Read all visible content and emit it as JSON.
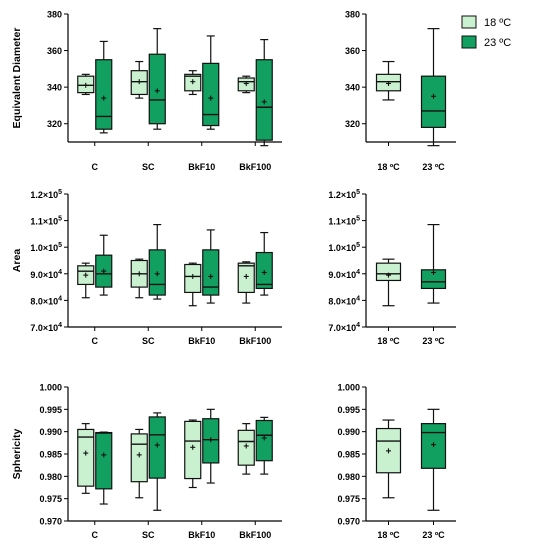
{
  "colors": {
    "light": "#c9f0cf",
    "dark": "#11a060",
    "stroke": "#111111"
  },
  "legend": {
    "entries": [
      {
        "label": "18 ºC",
        "color": "#c9f0cf"
      },
      {
        "label": "23 ºC",
        "color": "#11a060"
      }
    ]
  },
  "chart_data": [
    {
      "type": "box",
      "ylabel": "Equivalent Diameter",
      "ylim": [
        310,
        380
      ],
      "yticks": [
        320,
        340,
        360,
        380
      ],
      "ytick_labels": [
        "320",
        "340",
        "360",
        "380"
      ],
      "categories": [
        "C",
        "SC",
        "BkF10",
        "BkF100"
      ],
      "series": [
        {
          "name": "18 ºC",
          "boxes": [
            {
              "min": 336,
              "q1": 337,
              "median": 341,
              "q3": 346,
              "max": 347,
              "mean": 341
            },
            {
              "min": 334,
              "q1": 336,
              "median": 343,
              "q3": 349,
              "max": 354,
              "mean": 343
            },
            {
              "min": 336,
              "q1": 338,
              "median": 346,
              "q3": 347,
              "max": 349,
              "mean": 343
            },
            {
              "min": 337,
              "q1": 338,
              "median": 343,
              "q3": 345,
              "max": 346,
              "mean": 342
            }
          ]
        },
        {
          "name": "23 ºC",
          "boxes": [
            {
              "min": 315,
              "q1": 317,
              "median": 324,
              "q3": 355,
              "max": 365,
              "mean": 334
            },
            {
              "min": 317,
              "q1": 320,
              "median": 333,
              "q3": 358,
              "max": 372,
              "mean": 338
            },
            {
              "min": 317,
              "q1": 319,
              "median": 325,
              "q3": 353,
              "max": 368,
              "mean": 334
            },
            {
              "min": 308,
              "q1": 311,
              "median": 329,
              "q3": 355,
              "max": 366,
              "mean": 332
            }
          ]
        }
      ]
    },
    {
      "type": "box",
      "ylim": [
        310,
        380
      ],
      "yticks": [
        320,
        340,
        360,
        380
      ],
      "ytick_labels": [
        "320",
        "340",
        "360",
        "380"
      ],
      "categories": [
        "18 ºC",
        "23 ºC"
      ],
      "series": [
        {
          "name": "18 ºC",
          "boxes": [
            {
              "min": 333,
              "q1": 338,
              "median": 343,
              "q3": 347,
              "max": 354,
              "mean": 342
            }
          ]
        },
        {
          "name": "23 ºC",
          "boxes": [
            {
              "min": 308,
              "q1": 318,
              "median": 327,
              "q3": 346,
              "max": 372,
              "mean": 335
            }
          ]
        }
      ]
    },
    {
      "type": "box",
      "ylabel": "Area",
      "ylim": [
        70000,
        120000
      ],
      "yticks": [
        70000,
        80000,
        90000,
        100000,
        110000,
        120000
      ],
      "ytick_labels": [
        {
          "base": "7.0×10",
          "exp": "4"
        },
        {
          "base": "8.0×10",
          "exp": "4"
        },
        {
          "base": "9.0×10",
          "exp": "4"
        },
        {
          "base": "1.0×10",
          "exp": "5"
        },
        {
          "base": "1.1×10",
          "exp": "5"
        },
        {
          "base": "1.2×10",
          "exp": "5"
        }
      ],
      "categories": [
        "C",
        "SC",
        "BkF10",
        "BkF100"
      ],
      "series": [
        {
          "name": "18 ºC",
          "boxes": [
            {
              "min": 81000,
              "q1": 86000,
              "median": 91000,
              "q3": 93000,
              "max": 94000,
              "mean": 89500
            },
            {
              "min": 81000,
              "q1": 85000,
              "median": 90000,
              "q3": 95000,
              "max": 95500,
              "mean": 90000
            },
            {
              "min": 78000,
              "q1": 83000,
              "median": 89000,
              "q3": 93500,
              "max": 94000,
              "mean": 89000
            },
            {
              "min": 79000,
              "q1": 83000,
              "median": 93000,
              "q3": 94000,
              "max": 94500,
              "mean": 89000
            }
          ]
        },
        {
          "name": "23 ºC",
          "boxes": [
            {
              "min": 82000,
              "q1": 85000,
              "median": 90000,
              "q3": 97000,
              "max": 104500,
              "mean": 91000
            },
            {
              "min": 80500,
              "q1": 82000,
              "median": 86000,
              "q3": 99000,
              "max": 108500,
              "mean": 90000
            },
            {
              "min": 79000,
              "q1": 82000,
              "median": 85000,
              "q3": 99000,
              "max": 106500,
              "mean": 89000
            },
            {
              "min": 82000,
              "q1": 84500,
              "median": 86000,
              "q3": 98000,
              "max": 105500,
              "mean": 90500
            }
          ]
        }
      ]
    },
    {
      "type": "box",
      "ylim": [
        70000,
        120000
      ],
      "yticks": [
        70000,
        80000,
        90000,
        100000,
        110000,
        120000
      ],
      "ytick_labels": [
        {
          "base": "7.0×10",
          "exp": "4"
        },
        {
          "base": "8.0×10",
          "exp": "4"
        },
        {
          "base": "9.0×10",
          "exp": "4"
        },
        {
          "base": "1.0×10",
          "exp": "5"
        },
        {
          "base": "1.1×10",
          "exp": "5"
        },
        {
          "base": "1.2×10",
          "exp": "5"
        }
      ],
      "categories": [
        "18 ºC",
        "23 ºC"
      ],
      "series": [
        {
          "name": "18 ºC",
          "boxes": [
            {
              "min": 78000,
              "q1": 87500,
              "median": 90000,
              "q3": 94000,
              "max": 95500,
              "mean": 89500
            }
          ]
        },
        {
          "name": "23 ºC",
          "boxes": [
            {
              "min": 79000,
              "q1": 84500,
              "median": 87000,
              "q3": 91500,
              "max": 108500,
              "mean": 90500
            }
          ]
        }
      ]
    },
    {
      "type": "box",
      "ylabel": "Sphericity",
      "ylim": [
        0.97,
        1.0
      ],
      "yticks": [
        0.97,
        0.975,
        0.98,
        0.985,
        0.99,
        0.995,
        1.0
      ],
      "ytick_labels": [
        "0.970",
        "0.975",
        "0.980",
        "0.985",
        "0.990",
        "0.995",
        "1.000"
      ],
      "categories": [
        "C",
        "SC",
        "BkF10",
        "BkF100"
      ],
      "series": [
        {
          "name": "18 ºC",
          "boxes": [
            {
              "min": 0.9762,
              "q1": 0.9778,
              "median": 0.9888,
              "q3": 0.9905,
              "max": 0.9918,
              "mean": 0.9852
            },
            {
              "min": 0.9752,
              "q1": 0.9788,
              "median": 0.9872,
              "q3": 0.9895,
              "max": 0.9905,
              "mean": 0.9848
            },
            {
              "min": 0.9775,
              "q1": 0.9795,
              "median": 0.9879,
              "q3": 0.9923,
              "max": 0.9926,
              "mean": 0.9865
            },
            {
              "min": 0.9805,
              "q1": 0.9825,
              "median": 0.9878,
              "q3": 0.9903,
              "max": 0.9918,
              "mean": 0.9868
            }
          ]
        },
        {
          "name": "23 ºC",
          "boxes": [
            {
              "min": 0.9738,
              "q1": 0.9772,
              "median": 0.9897,
              "q3": 0.9898,
              "max": 0.9899,
              "mean": 0.9848
            },
            {
              "min": 0.9724,
              "q1": 0.9796,
              "median": 0.9893,
              "q3": 0.9933,
              "max": 0.9942,
              "mean": 0.987
            },
            {
              "min": 0.9785,
              "q1": 0.983,
              "median": 0.9882,
              "q3": 0.9929,
              "max": 0.995,
              "mean": 0.9882
            },
            {
              "min": 0.9805,
              "q1": 0.9835,
              "median": 0.9892,
              "q3": 0.9925,
              "max": 0.9932,
              "mean": 0.9886
            }
          ]
        }
      ]
    },
    {
      "type": "box",
      "ylim": [
        0.97,
        1.0
      ],
      "yticks": [
        0.97,
        0.975,
        0.98,
        0.985,
        0.99,
        0.995,
        1.0
      ],
      "ytick_labels": [
        "0.970",
        "0.975",
        "0.980",
        "0.985",
        "0.990",
        "0.995",
        "1.000"
      ],
      "categories": [
        "18 ºC",
        "23 ºC"
      ],
      "series": [
        {
          "name": "18 ºC",
          "boxes": [
            {
              "min": 0.9752,
              "q1": 0.9808,
              "median": 0.9879,
              "q3": 0.9907,
              "max": 0.9926,
              "mean": 0.9857
            }
          ]
        },
        {
          "name": "23 ºC",
          "boxes": [
            {
              "min": 0.9724,
              "q1": 0.9818,
              "median": 0.9898,
              "q3": 0.9918,
              "max": 0.995,
              "mean": 0.9871
            }
          ]
        }
      ]
    }
  ]
}
